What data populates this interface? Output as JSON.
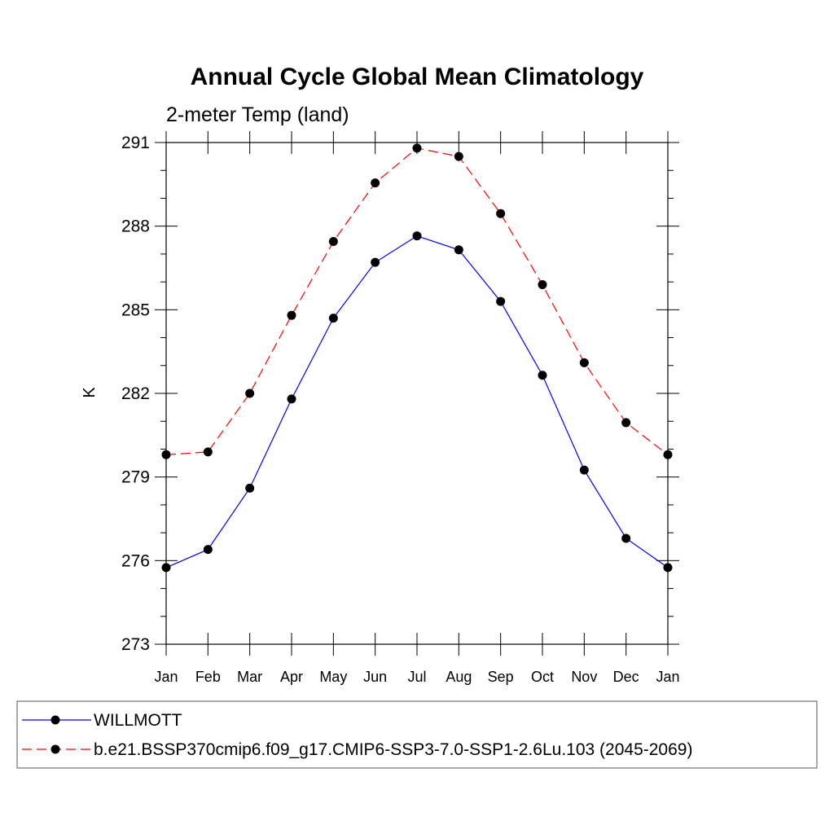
{
  "chart_data": {
    "type": "line",
    "title": "Annual Cycle Global Mean Climatology",
    "subtitle": "2-meter Temp (land)",
    "xlabel": "",
    "ylabel": "K",
    "categories": [
      "Jan",
      "Feb",
      "Mar",
      "Apr",
      "May",
      "Jun",
      "Jul",
      "Aug",
      "Sep",
      "Oct",
      "Nov",
      "Dec",
      "Jan"
    ],
    "ylim": [
      273,
      291
    ],
    "yticks": [
      273,
      276,
      279,
      282,
      285,
      288,
      291
    ],
    "grid": false,
    "legend_position": "bottom",
    "series": [
      {
        "name": "WILLMOTT",
        "color": "#0000ff",
        "style": "solid",
        "marker": "filled-circle",
        "values": [
          275.75,
          276.4,
          278.6,
          281.8,
          284.7,
          286.7,
          287.65,
          287.15,
          285.3,
          282.65,
          279.25,
          276.8,
          275.75
        ]
      },
      {
        "name": "b.e21.BSSP370cmip6.f09_g17.CMIP6-SSP3-7.0-SSP1-2.6Lu.103 (2045-2069)",
        "color": "#ff0000",
        "style": "dashed",
        "marker": "filled-circle",
        "values": [
          279.8,
          279.9,
          282.0,
          284.8,
          287.45,
          289.55,
          290.8,
          290.5,
          288.45,
          285.9,
          283.1,
          280.95,
          279.8
        ]
      }
    ]
  }
}
